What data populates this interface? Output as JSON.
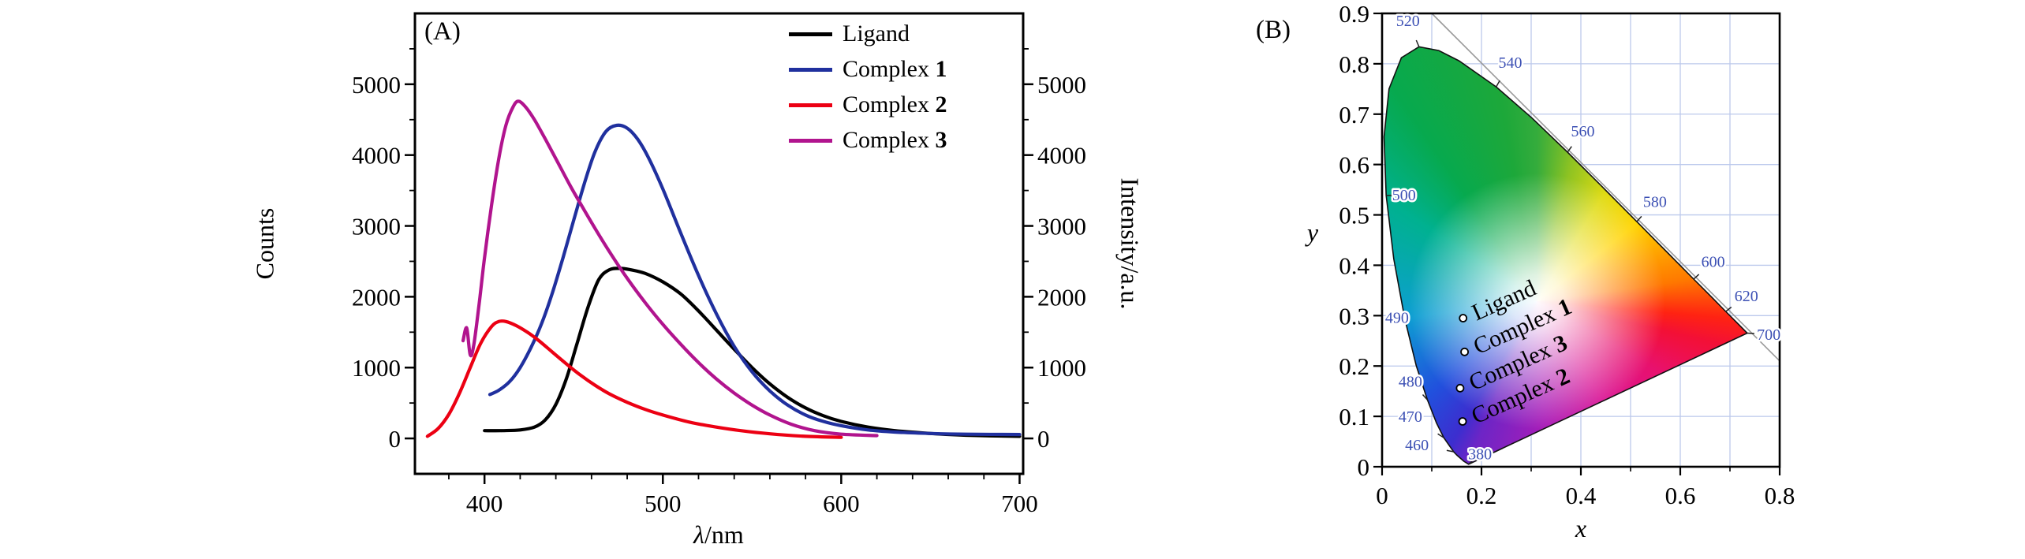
{
  "figure": {
    "background": "#ffffff",
    "panels": {
      "a": {
        "tag": "(A)",
        "xlabel_prefix": "λ",
        "xlabel_suffix": "/nm",
        "ylabel_left": "Counts",
        "ylabel_right": "Intensity/a.u."
      },
      "b": {
        "tag": "(B)",
        "xlabel": "x",
        "ylabel": "y"
      }
    }
  },
  "chart_data": [
    {
      "type": "line",
      "panel": "A",
      "title": "",
      "xlabel": "λ/nm",
      "ylabel": "Counts",
      "ylabel_right": "Intensity/a.u.",
      "xlim": [
        361,
        702
      ],
      "ylim": [
        -500,
        6000
      ],
      "xticks": [
        400,
        500,
        600,
        700
      ],
      "yticks": [
        0,
        1000,
        2000,
        3000,
        4000,
        5000
      ],
      "x_minor_step": 20,
      "y_minor_step": 500,
      "grid": false,
      "legend_position": "top-right",
      "series": [
        {
          "name": "Ligand",
          "color": "#000000",
          "x": [
            400,
            410,
            420,
            428,
            434,
            440,
            446,
            452,
            458,
            464,
            470,
            476,
            482,
            490,
            500,
            510,
            520,
            530,
            540,
            550,
            560,
            570,
            580,
            590,
            600,
            615,
            630,
            650,
            670,
            700
          ],
          "y": [
            110,
            110,
            120,
            160,
            260,
            480,
            850,
            1350,
            1850,
            2240,
            2380,
            2400,
            2380,
            2330,
            2210,
            2040,
            1800,
            1530,
            1260,
            1000,
            770,
            580,
            430,
            320,
            240,
            160,
            110,
            70,
            45,
            30
          ]
        },
        {
          "name": "Complex 1",
          "color": "#20309e",
          "x": [
            403,
            408,
            414,
            420,
            426,
            432,
            438,
            444,
            450,
            456,
            462,
            468,
            474,
            480,
            486,
            492,
            500,
            510,
            520,
            530,
            540,
            550,
            560,
            570,
            580,
            590,
            600,
            615,
            630,
            650,
            670,
            700
          ],
          "y": [
            620,
            680,
            800,
            1000,
            1280,
            1620,
            2050,
            2550,
            3080,
            3600,
            4050,
            4330,
            4420,
            4380,
            4220,
            3960,
            3520,
            2900,
            2300,
            1760,
            1300,
            940,
            670,
            470,
            330,
            240,
            180,
            120,
            90,
            70,
            60,
            55
          ]
        },
        {
          "name": "Complex 2",
          "color": "#ec0013",
          "x": [
            368,
            374,
            380,
            386,
            392,
            398,
            404,
            408,
            412,
            418,
            424,
            430,
            438,
            446,
            454,
            462,
            470,
            480,
            490,
            500,
            515,
            530,
            545,
            560,
            580,
            600
          ],
          "y": [
            30,
            140,
            340,
            640,
            1000,
            1350,
            1580,
            1650,
            1650,
            1590,
            1500,
            1390,
            1220,
            1050,
            890,
            750,
            630,
            510,
            410,
            330,
            230,
            160,
            105,
            65,
            30,
            15
          ]
        },
        {
          "name": "Complex 3",
          "color": "#b1148e",
          "x": [
            388,
            390,
            392,
            394,
            397,
            400,
            404,
            408,
            412,
            416,
            419,
            423,
            428,
            434,
            440,
            448,
            456,
            464,
            472,
            480,
            490,
            500,
            510,
            520,
            530,
            540,
            550,
            560,
            572,
            585,
            600,
            620
          ],
          "y": [
            1380,
            1560,
            1180,
            1320,
            1900,
            2550,
            3300,
            3950,
            4420,
            4680,
            4760,
            4680,
            4500,
            4230,
            3950,
            3570,
            3220,
            2880,
            2560,
            2260,
            1920,
            1610,
            1330,
            1070,
            840,
            640,
            470,
            330,
            200,
            110,
            60,
            40
          ]
        }
      ]
    },
    {
      "type": "scatter",
      "panel": "B",
      "subtype": "cie1931-chromaticity",
      "title": "",
      "xlabel": "x",
      "ylabel": "y",
      "xlim": [
        0,
        0.8
      ],
      "ylim": [
        0,
        0.9
      ],
      "xticks": [
        0,
        0.2,
        0.4,
        0.6,
        0.8
      ],
      "yticks": [
        0,
        0.1,
        0.2,
        0.3,
        0.4,
        0.5,
        0.6,
        0.7,
        0.8,
        0.9
      ],
      "grid": true,
      "grid_step": 0.1,
      "grid_color": "#bcc9ec",
      "diagonal_line_color": "#9a9a9a",
      "wavelength_label_color": "#3c50b4",
      "label_rotation_deg": -24,
      "points": [
        {
          "name": "Ligand",
          "x": 0.163,
          "y": 0.295
        },
        {
          "name": "Complex 1",
          "x": 0.166,
          "y": 0.228
        },
        {
          "name": "Complex 3",
          "x": 0.157,
          "y": 0.156
        },
        {
          "name": "Complex 2",
          "x": 0.162,
          "y": 0.09
        }
      ],
      "diagonal_line": {
        "x1": 0.1,
        "y1": 0.9,
        "x2": 0.8,
        "y2": 0.21
      },
      "spectral_locus": [
        [
          0.1741,
          0.005
        ],
        [
          0.1644,
          0.0109
        ],
        [
          0.151,
          0.0227
        ],
        [
          0.144,
          0.0297
        ],
        [
          0.1241,
          0.0578
        ],
        [
          0.1096,
          0.0868
        ],
        [
          0.0913,
          0.1327
        ],
        [
          0.0687,
          0.2007
        ],
        [
          0.0454,
          0.295
        ],
        [
          0.0235,
          0.4127
        ],
        [
          0.0082,
          0.5384
        ],
        [
          0.0039,
          0.6548
        ],
        [
          0.0139,
          0.7502
        ],
        [
          0.0389,
          0.812
        ],
        [
          0.0743,
          0.8338
        ],
        [
          0.1142,
          0.8262
        ],
        [
          0.1547,
          0.8059
        ],
        [
          0.2296,
          0.7543
        ],
        [
          0.3016,
          0.6923
        ],
        [
          0.3731,
          0.6245
        ],
        [
          0.4441,
          0.5547
        ],
        [
          0.5125,
          0.4866
        ],
        [
          0.5752,
          0.4242
        ],
        [
          0.627,
          0.3725
        ],
        [
          0.6658,
          0.334
        ],
        [
          0.6915,
          0.3083
        ],
        [
          0.719,
          0.2809
        ],
        [
          0.7347,
          0.2653
        ]
      ],
      "wavelength_labels": [
        {
          "nm": "520",
          "px": 0.0743,
          "py": 0.8338,
          "lx": 0.052,
          "ly": 0.886
        },
        {
          "nm": "540",
          "px": 0.2296,
          "py": 0.7543,
          "lx": 0.258,
          "ly": 0.803
        },
        {
          "nm": "560",
          "px": 0.3731,
          "py": 0.6245,
          "lx": 0.404,
          "ly": 0.667
        },
        {
          "nm": "580",
          "px": 0.5125,
          "py": 0.4866,
          "lx": 0.549,
          "ly": 0.527
        },
        {
          "nm": "600",
          "px": 0.627,
          "py": 0.3725,
          "lx": 0.666,
          "ly": 0.408
        },
        {
          "nm": "620",
          "px": 0.6915,
          "py": 0.3083,
          "lx": 0.733,
          "ly": 0.34
        },
        {
          "nm": "700",
          "px": 0.7347,
          "py": 0.2653,
          "lx": 0.778,
          "ly": 0.263
        },
        {
          "nm": "500",
          "px": 0.0082,
          "py": 0.5384,
          "lx": 0.044,
          "ly": 0.54
        },
        {
          "nm": "490",
          "px": 0.0454,
          "py": 0.295,
          "lx": 0.03,
          "ly": 0.297
        },
        {
          "nm": "480",
          "px": 0.0913,
          "py": 0.1327,
          "lx": 0.057,
          "ly": 0.17
        },
        {
          "nm": "470",
          "px": 0.1241,
          "py": 0.0578,
          "lx": 0.057,
          "ly": 0.1
        },
        {
          "nm": "460",
          "px": 0.144,
          "py": 0.0297,
          "lx": 0.07,
          "ly": 0.044
        },
        {
          "nm": "380",
          "px": 0.1741,
          "py": 0.005,
          "lx": 0.197,
          "ly": 0.026
        }
      ]
    }
  ]
}
